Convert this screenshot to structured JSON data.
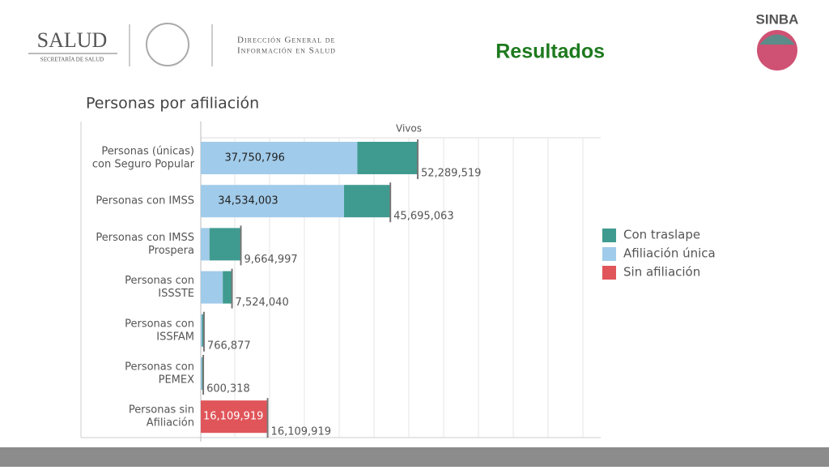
{
  "header": {
    "logo": "SALUD",
    "logo_subtitle": "SECRETARÍA DE SALUD",
    "department": [
      "Dirección General de",
      "Información en Salud"
    ],
    "slide_title": "Resultados",
    "brand": "SINBA"
  },
  "chart_data": {
    "type": "stacked-barh",
    "title": "Personas por afiliación",
    "column_header": "Vivos",
    "categories": [
      [
        "Personas (únicas)",
        "con Seguro Popular"
      ],
      [
        "Personas con IMSS"
      ],
      [
        "Personas con IMSS",
        "Prospera"
      ],
      [
        "Personas con",
        "ISSSTE"
      ],
      [
        "Personas con",
        "ISSFAM"
      ],
      [
        "Personas con",
        "PEMEX"
      ],
      [
        "Personas sin",
        "Afiliación"
      ]
    ],
    "series": [
      {
        "name": "Con traslape",
        "color": "#3f9b8f",
        "values": [
          14538723,
          11161060,
          7564997,
          2224040,
          466877,
          350318,
          0
        ]
      },
      {
        "name": "Afiliación única",
        "color": "#a1cbea",
        "values": [
          37750796,
          34534003,
          2100000,
          5300000,
          300000,
          250000,
          0
        ],
        "value_labels": [
          "37,750,796",
          "34,534,003",
          null,
          null,
          null,
          null,
          null
        ]
      },
      {
        "name": "Sin afiliación",
        "color": "#e0555a",
        "values": [
          0,
          0,
          0,
          0,
          0,
          0,
          16109919
        ],
        "value_labels": [
          null,
          null,
          null,
          null,
          null,
          null,
          "16,109,919"
        ]
      }
    ],
    "totals": [
      52289519,
      45695063,
      9664997,
      7524040,
      766877,
      600318,
      16109919
    ],
    "total_labels": [
      "52,289,519",
      "45,695,063",
      "9,664,997",
      "7,524,040",
      "766,877",
      "600,318",
      "16,109,919"
    ],
    "xlim": [
      0,
      96400000
    ]
  }
}
